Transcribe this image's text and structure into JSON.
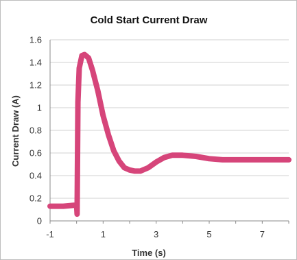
{
  "chart_data": {
    "type": "line",
    "title": "Cold Start Current Draw",
    "xlabel": "Time (s)",
    "ylabel": "Current Draw (A)",
    "xlim": [
      -1,
      8
    ],
    "ylim": [
      0,
      1.6
    ],
    "xticks": [
      -1,
      1,
      3,
      5,
      7
    ],
    "yticks": [
      0,
      0.2,
      0.4,
      0.6,
      0.8,
      1,
      1.2,
      1.4,
      1.6
    ],
    "ytick_labels": [
      "0",
      "0.2",
      "0.4",
      "0.6",
      "0.8",
      "1",
      "1.2",
      "1.4",
      "1.6"
    ],
    "grid": "horizontal",
    "legend": "none",
    "line_color": "#d6457a",
    "series": [
      {
        "x": [
          -1,
          -0.5,
          0,
          0.02,
          0.05,
          0.1,
          0.2,
          0.3,
          0.45,
          0.6,
          0.8,
          1.0,
          1.2,
          1.4,
          1.6,
          1.8,
          2.0,
          2.2,
          2.4,
          2.7,
          3.0,
          3.3,
          3.6,
          4.0,
          4.5,
          5.0,
          5.5,
          6.0,
          6.5,
          7.0,
          7.5,
          8.0
        ],
        "y": [
          0.13,
          0.13,
          0.14,
          0.06,
          1.05,
          1.35,
          1.46,
          1.47,
          1.44,
          1.33,
          1.15,
          0.93,
          0.76,
          0.62,
          0.53,
          0.47,
          0.45,
          0.44,
          0.44,
          0.47,
          0.52,
          0.56,
          0.58,
          0.58,
          0.57,
          0.55,
          0.54,
          0.54,
          0.54,
          0.54,
          0.54,
          0.54
        ]
      }
    ]
  }
}
